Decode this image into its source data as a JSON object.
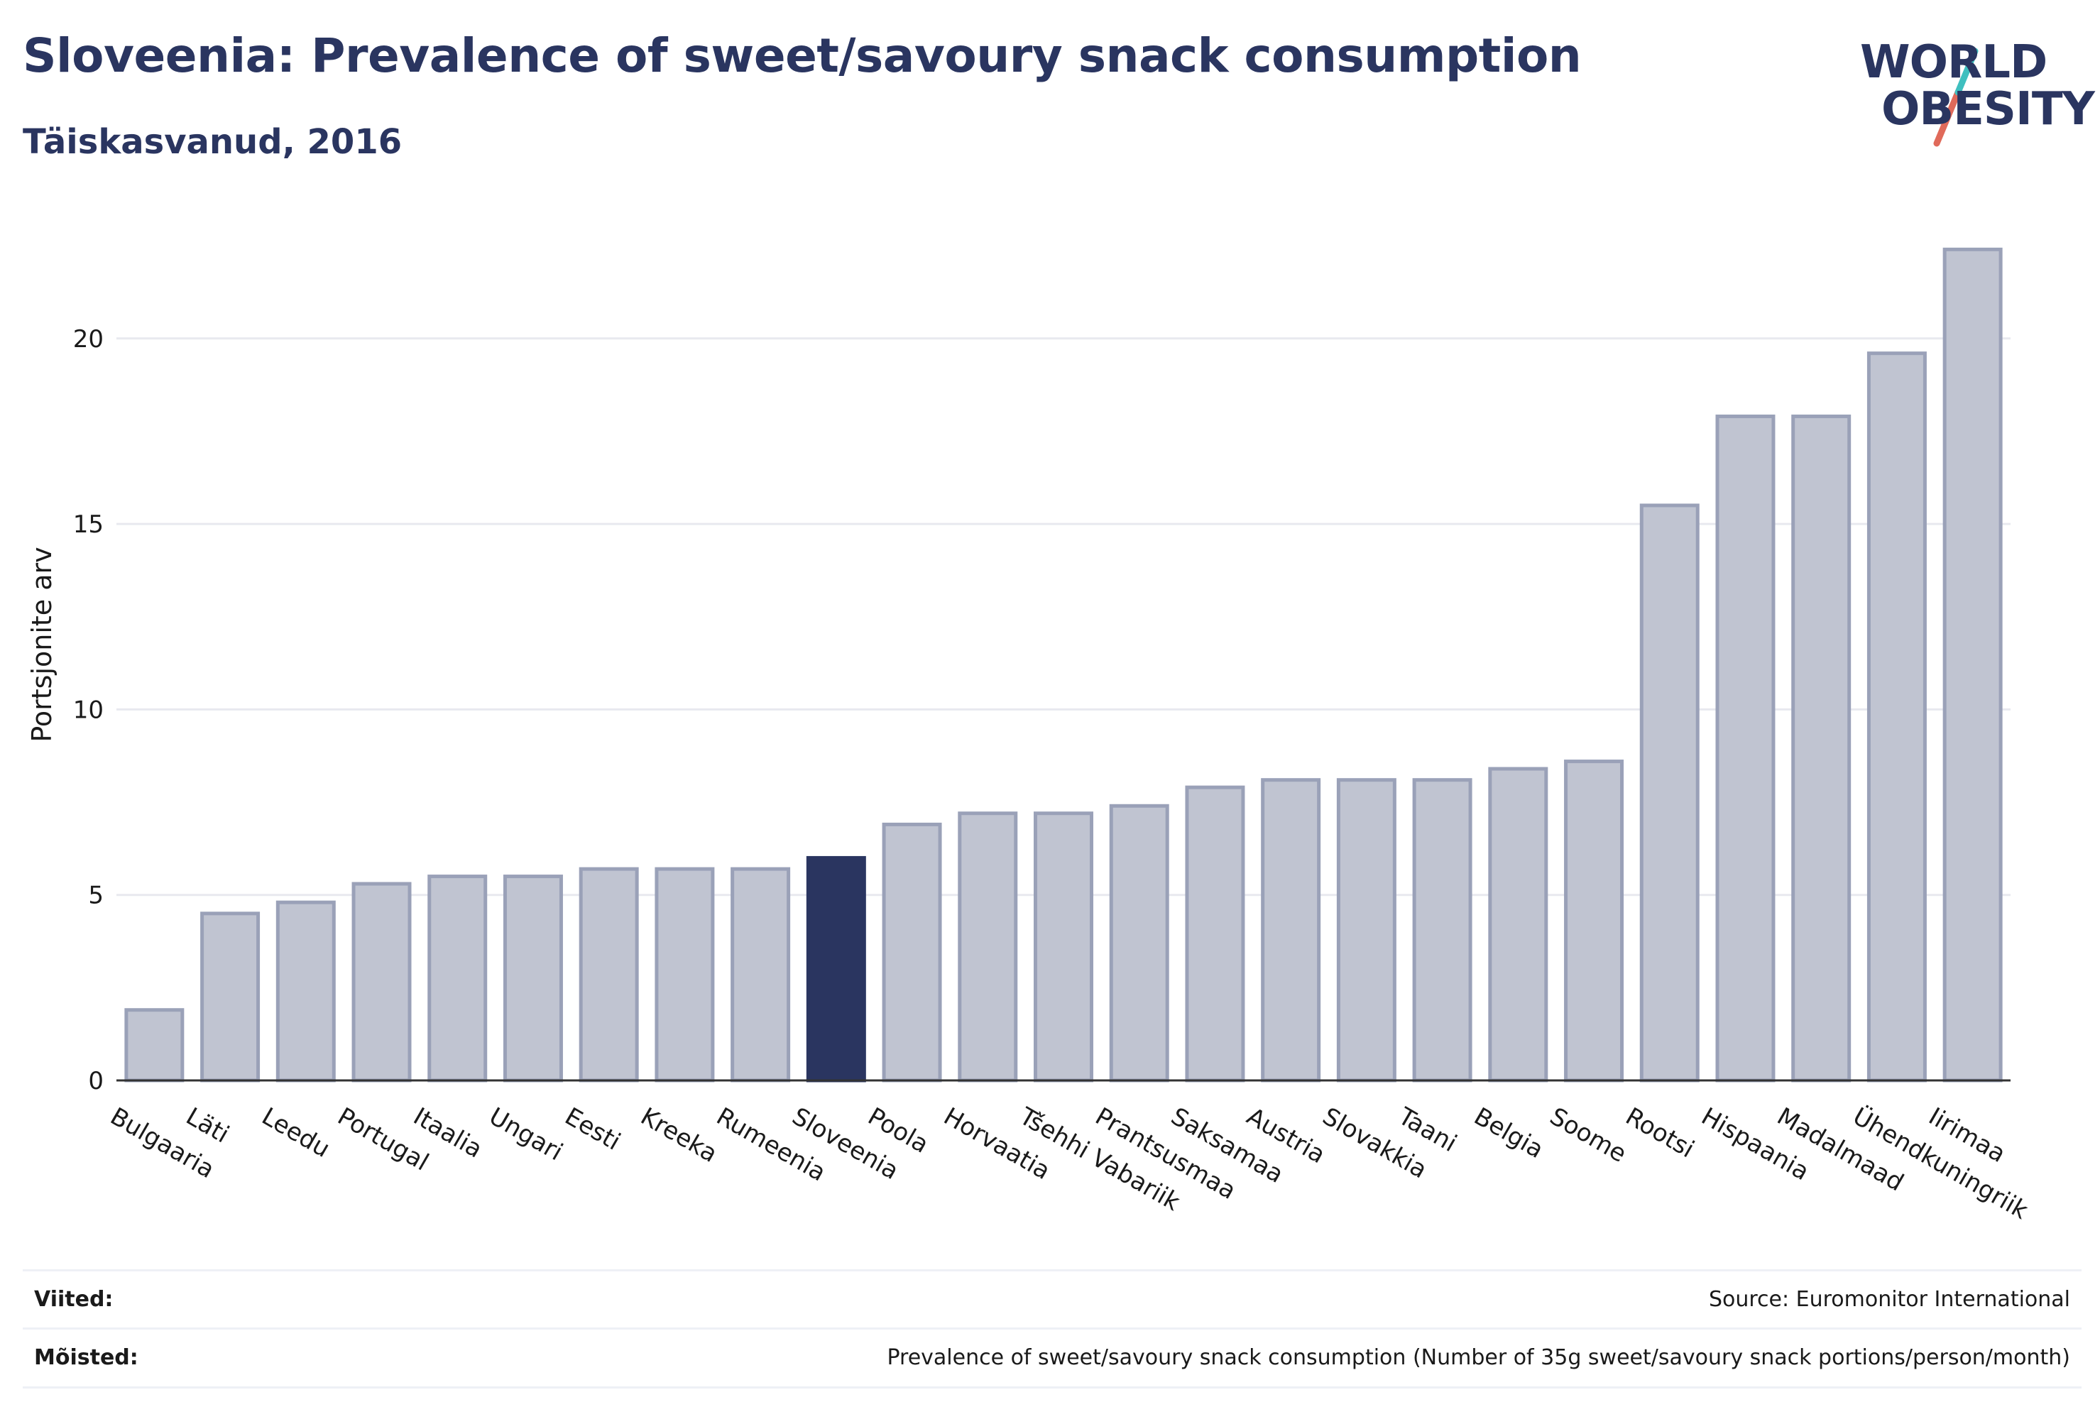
{
  "header": {
    "title": "Sloveenia: Prevalence of sweet/savoury snack consumption",
    "subtitle": "Täiskasvanud, 2016"
  },
  "logo": {
    "line1": "WORLD",
    "line2": "OBESITY",
    "colors": [
      "#2a3560",
      "#e06a5a",
      "#3fbfbf"
    ]
  },
  "chart_data": {
    "type": "bar",
    "title": "Sloveenia: Prevalence of sweet/savoury snack consumption",
    "subtitle": "Täiskasvanud, 2016",
    "ylabel": "Portsjonite arv",
    "ylim": [
      0,
      23
    ],
    "yticks": [
      0,
      5,
      10,
      15,
      20
    ],
    "grid": true,
    "highlight": "Sloveenia",
    "colors": {
      "bar": "#c0c4d1",
      "bar_stroke": "#9aa1b8",
      "highlight": "#2a3560",
      "grid": "#e8e9ef",
      "axis": "#333333"
    },
    "categories": [
      "Bulgaaria",
      "Läti",
      "Leedu",
      "Portugal",
      "Itaalia",
      "Ungari",
      "Eesti",
      "Kreeka",
      "Rumeenia",
      "Sloveenia",
      "Poola",
      "Horvaatia",
      "Tšehhi Vabariik",
      "Prantsusmaa",
      "Saksamaa",
      "Austria",
      "Slovakkia",
      "Taani",
      "Belgia",
      "Soome",
      "Rootsi",
      "Hispaania",
      "Madalmaad",
      "Ühendkuningriik",
      "Iirimaa"
    ],
    "values": [
      1.9,
      4.5,
      4.8,
      5.3,
      5.5,
      5.5,
      5.7,
      5.7,
      5.7,
      6.0,
      6.9,
      7.2,
      7.2,
      7.4,
      7.9,
      8.1,
      8.1,
      8.1,
      8.4,
      8.6,
      15.5,
      17.9,
      17.9,
      19.6,
      22.4
    ]
  },
  "footer": {
    "refs_label": "Viited:",
    "refs_value": "Source: Euromonitor International",
    "defs_label": "Mõisted:",
    "defs_value": "Prevalence of sweet/savoury snack consumption (Number of 35g sweet/savoury snack portions/person/month)"
  }
}
